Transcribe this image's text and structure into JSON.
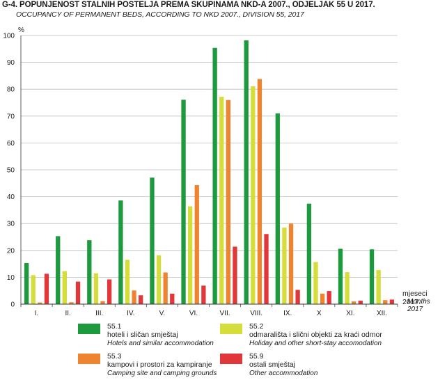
{
  "header": {
    "title": "G-4.  POPUNJENOST STALNIH POSTELJA PREMA SKUPINAMA NKD-A 2007., ODJELJAK 55 U 2017.",
    "subtitle": "OCCUPANCY OF PERMANENT BEDS, ACCORDING TO NKD 2007., DIVISION 55, 2017"
  },
  "chart_data": {
    "type": "bar",
    "ylabel": "%",
    "ylim": [
      0,
      100
    ],
    "yticks": [
      0,
      10,
      20,
      30,
      40,
      50,
      60,
      70,
      80,
      90,
      100
    ],
    "xlabel": "mjeseci 2017.",
    "xlabel_en": "Months 2017",
    "categories": [
      "I.",
      "II.",
      "III.",
      "IV.",
      "V.",
      "VI.",
      "VII.",
      "VIII.",
      "IX.",
      "X",
      "XI.",
      "XII."
    ],
    "grid": "horizontal",
    "legend_position": "bottom",
    "series": [
      {
        "name": "55.1",
        "label_hr": "hoteli i sličan smještaj",
        "label_en": "Hotels and similar accommodation",
        "color": "#1e9a3e",
        "values": [
          15.3,
          25.3,
          23.8,
          38.6,
          47.1,
          76.1,
          95.4,
          98.2,
          71.0,
          37.4,
          20.6,
          20.4
        ]
      },
      {
        "name": "55.2",
        "label_hr": "odmarališta i slični objekti za kraći odmor",
        "label_en": "Holiday and other short-stay accomodation",
        "color": "#d5dd3a",
        "values": [
          10.8,
          12.3,
          11.5,
          16.5,
          18.2,
          36.4,
          77.2,
          81.1,
          28.5,
          15.7,
          11.9,
          12.7
        ]
      },
      {
        "name": "55.3",
        "label_hr": "kampovi i prostori za kampiranje",
        "label_en": "Camping site and camping grounds",
        "color": "#ee8430",
        "values": [
          0.6,
          0.7,
          1.1,
          5.1,
          11.8,
          44.3,
          76.0,
          83.8,
          30.0,
          3.9,
          1.0,
          1.5
        ]
      },
      {
        "name": "55.9",
        "label_hr": "ostali smještaj",
        "label_en": "Other accommodation",
        "color": "#e2373a",
        "values": [
          11.3,
          8.4,
          9.2,
          3.3,
          3.9,
          6.9,
          21.4,
          26.1,
          5.3,
          4.9,
          1.3,
          1.7
        ]
      }
    ]
  }
}
